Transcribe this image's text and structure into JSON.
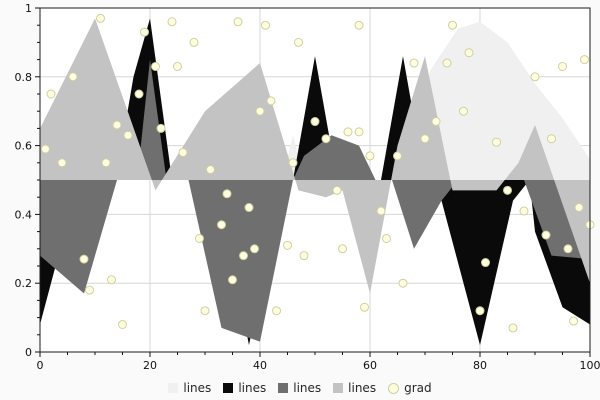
{
  "figure": {
    "bg": "#fafafa",
    "plot_bg": "#ffffff",
    "frame_color": "#1a1a1a",
    "grid_color": "#d7d7d7",
    "tick_color": "#111111"
  },
  "chart_data": {
    "type": "area",
    "title": "",
    "xlabel": "",
    "ylabel": "",
    "baseline": 0.5,
    "xlim": [
      0,
      100
    ],
    "ylim": [
      0,
      1
    ],
    "grid": true,
    "legend_position": "bottom",
    "x_ticks": {
      "major": [
        0,
        20,
        40,
        60,
        80,
        100
      ],
      "labels": [
        "0",
        "20",
        "40",
        "60",
        "80",
        "100"
      ],
      "minor_step": 5
    },
    "y_ticks": {
      "major": [
        0,
        0.2,
        0.4,
        0.6,
        0.8,
        1
      ],
      "labels": [
        "0",
        "0.2",
        "0.4",
        "0.6",
        "0.8",
        "1"
      ],
      "minor_step": 0.05
    },
    "series": [
      {
        "name": "lines",
        "color": "#f0f0f0",
        "points": [
          [
            0,
            0.5
          ],
          [
            44,
            0.5
          ],
          [
            46,
            0.63
          ],
          [
            48,
            0.5
          ],
          [
            66,
            0.5
          ],
          [
            71,
            0.82
          ],
          [
            76,
            0.94
          ],
          [
            80,
            0.96
          ],
          [
            85,
            0.9
          ],
          [
            90,
            0.78
          ],
          [
            95,
            0.68
          ],
          [
            100,
            0.56
          ]
        ]
      },
      {
        "name": "lines",
        "color": "#0a0a0a",
        "points": [
          [
            0,
            0.08
          ],
          [
            7,
            0.5
          ],
          [
            14,
            0.52
          ],
          [
            17,
            0.8
          ],
          [
            20,
            0.97
          ],
          [
            24,
            0.5
          ],
          [
            32,
            0.5
          ],
          [
            38,
            0.02
          ],
          [
            44,
            0.5
          ],
          [
            46,
            0.5
          ],
          [
            50,
            0.86
          ],
          [
            54,
            0.5
          ],
          [
            62,
            0.5
          ],
          [
            66,
            0.86
          ],
          [
            70,
            0.5
          ],
          [
            72,
            0.5
          ],
          [
            80,
            0.02
          ],
          [
            86,
            0.44
          ],
          [
            89,
            0.5
          ],
          [
            90,
            0.35
          ],
          [
            95,
            0.13
          ],
          [
            100,
            0.08
          ]
        ]
      },
      {
        "name": "lines",
        "color": "#6f6f6f",
        "points": [
          [
            0,
            0.28
          ],
          [
            8,
            0.17
          ],
          [
            14,
            0.5
          ],
          [
            18,
            0.55
          ],
          [
            20,
            0.85
          ],
          [
            23,
            0.5
          ],
          [
            27,
            0.5
          ],
          [
            33,
            0.07
          ],
          [
            40,
            0.03
          ],
          [
            46,
            0.5
          ],
          [
            48,
            0.57
          ],
          [
            53,
            0.63
          ],
          [
            58,
            0.6
          ],
          [
            61,
            0.5
          ],
          [
            64,
            0.5
          ],
          [
            68,
            0.3
          ],
          [
            73,
            0.44
          ],
          [
            76,
            0.5
          ],
          [
            88,
            0.5
          ],
          [
            93,
            0.28
          ],
          [
            100,
            0.27
          ]
        ]
      },
      {
        "name": "lines",
        "color": "#c3c3c3",
        "points": [
          [
            0,
            0.65
          ],
          [
            10,
            0.97
          ],
          [
            21,
            0.47
          ],
          [
            30,
            0.7
          ],
          [
            40,
            0.84
          ],
          [
            47,
            0.47
          ],
          [
            52,
            0.45
          ],
          [
            55,
            0.47
          ],
          [
            60,
            0.17
          ],
          [
            65,
            0.6
          ],
          [
            70,
            0.86
          ],
          [
            75,
            0.47
          ],
          [
            83,
            0.47
          ],
          [
            87,
            0.55
          ],
          [
            90,
            0.66
          ],
          [
            100,
            0.2
          ]
        ]
      }
    ],
    "scatter": {
      "name": "grad",
      "fill": "#ffffe0",
      "edge": "#cfcfa0",
      "radius": 4,
      "points": [
        [
          1,
          0.59
        ],
        [
          2,
          0.75
        ],
        [
          4,
          0.55
        ],
        [
          6,
          0.8
        ],
        [
          8,
          0.27
        ],
        [
          9,
          0.18
        ],
        [
          11,
          0.97
        ],
        [
          12,
          0.55
        ],
        [
          13,
          0.21
        ],
        [
          14,
          0.66
        ],
        [
          15,
          0.08
        ],
        [
          16,
          0.63
        ],
        [
          18,
          0.75
        ],
        [
          19,
          0.93
        ],
        [
          21,
          0.83
        ],
        [
          22,
          0.65
        ],
        [
          24,
          0.96
        ],
        [
          25,
          0.83
        ],
        [
          26,
          0.58
        ],
        [
          28,
          0.9
        ],
        [
          29,
          0.33
        ],
        [
          30,
          0.12
        ],
        [
          31,
          0.53
        ],
        [
          33,
          0.37
        ],
        [
          34,
          0.46
        ],
        [
          35,
          0.21
        ],
        [
          36,
          0.96
        ],
        [
          37,
          0.28
        ],
        [
          38,
          0.42
        ],
        [
          39,
          0.3
        ],
        [
          40,
          0.7
        ],
        [
          41,
          0.95
        ],
        [
          42,
          0.73
        ],
        [
          43,
          0.12
        ],
        [
          45,
          0.31
        ],
        [
          46,
          0.55
        ],
        [
          47,
          0.9
        ],
        [
          48,
          0.28
        ],
        [
          50,
          0.67
        ],
        [
          52,
          0.62
        ],
        [
          54,
          0.47
        ],
        [
          55,
          0.3
        ],
        [
          56,
          0.64
        ],
        [
          58,
          0.95
        ],
        [
          58,
          0.64
        ],
        [
          59,
          0.13
        ],
        [
          60,
          0.57
        ],
        [
          62,
          0.41
        ],
        [
          63,
          0.33
        ],
        [
          65,
          0.57
        ],
        [
          66,
          0.2
        ],
        [
          68,
          0.84
        ],
        [
          70,
          0.62
        ],
        [
          72,
          0.67
        ],
        [
          74,
          0.84
        ],
        [
          75,
          0.95
        ],
        [
          77,
          0.7
        ],
        [
          78,
          0.87
        ],
        [
          80,
          0.12
        ],
        [
          81,
          0.26
        ],
        [
          83,
          0.61
        ],
        [
          85,
          0.47
        ],
        [
          86,
          0.07
        ],
        [
          88,
          0.41
        ],
        [
          90,
          0.8
        ],
        [
          92,
          0.34
        ],
        [
          93,
          0.62
        ],
        [
          95,
          0.83
        ],
        [
          96,
          0.3
        ],
        [
          97,
          0.09
        ],
        [
          98,
          0.42
        ],
        [
          99,
          0.85
        ],
        [
          100,
          0.37
        ]
      ]
    }
  },
  "legend": {
    "items": [
      {
        "label": "lines",
        "color": "#f0f0f0",
        "shape": "rect"
      },
      {
        "label": "lines",
        "color": "#0a0a0a",
        "shape": "rect"
      },
      {
        "label": "lines",
        "color": "#6f6f6f",
        "shape": "rect"
      },
      {
        "label": "lines",
        "color": "#c3c3c3",
        "shape": "rect"
      },
      {
        "label": "grad",
        "color": "#ffffe0",
        "shape": "dot"
      }
    ]
  }
}
